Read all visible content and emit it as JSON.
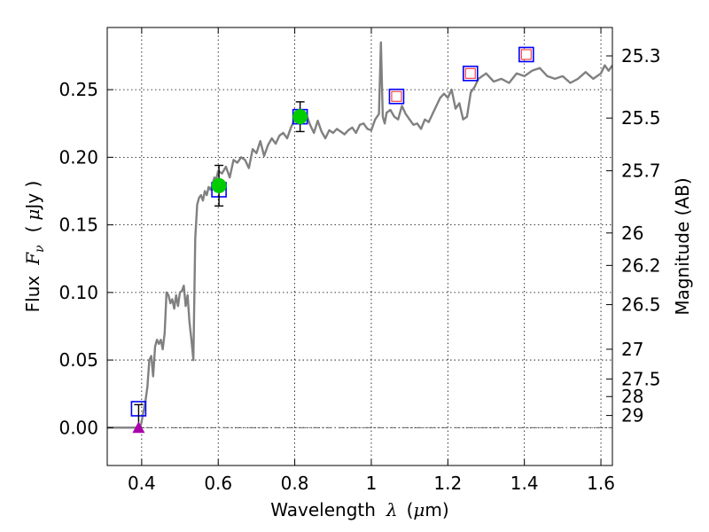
{
  "chart_data": {
    "type": "line",
    "title": "",
    "xlabel": {
      "prefix": "Wavelength",
      "symbol": "λ",
      "unit_open": "(",
      "unit_mu": "μ",
      "unit_rest": "m)"
    },
    "ylabel": {
      "prefix": "Flux",
      "symbol": "F",
      "subscript": "ν",
      "unit_open": "(",
      "unit_mu": "μ",
      "unit_rest": "Jy )"
    },
    "y2label": "Magnitude (AB)",
    "xlim": [
      0.31,
      1.63
    ],
    "ylim": [
      -0.028,
      0.296
    ],
    "xticks": [
      0.4,
      0.6,
      0.8,
      1.0,
      1.2,
      1.4,
      1.6
    ],
    "xtick_labels": [
      "0.4",
      "0.6",
      "0.8",
      "1",
      "1.2",
      "1.4",
      "1.6"
    ],
    "yticks": [
      0.0,
      0.05,
      0.1,
      0.15,
      0.2,
      0.25
    ],
    "ytick_labels": [
      "0.00",
      "0.05",
      "0.10",
      "0.15",
      "0.20",
      "0.25"
    ],
    "mag_ticks": [
      {
        "label": "25.3",
        "flux": 0.275
      },
      {
        "label": "25.5",
        "flux": 0.229
      },
      {
        "label": "25.7",
        "flux": 0.19
      },
      {
        "label": "26",
        "flux": 0.144
      },
      {
        "label": "26.2",
        "flux": 0.12
      },
      {
        "label": "26.5",
        "flux": 0.091
      },
      {
        "label": "27",
        "flux": 0.058
      },
      {
        "label": "27.5",
        "flux": 0.036
      },
      {
        "label": "28",
        "flux": 0.023
      },
      {
        "label": "29",
        "flux": 0.009
      }
    ],
    "grid": true,
    "zero_line": 0.0,
    "colors": {
      "spectrum": "#808080",
      "model_box": "#0000ff",
      "observed": "#00cc00",
      "upper_limit": "#aa00aa",
      "ir_marker": "#ff4444",
      "errorbar": "#000000"
    },
    "series": [
      {
        "name": "model spectrum",
        "kind": "line",
        "x": [
          0.31,
          0.392,
          0.398,
          0.405,
          0.41,
          0.415,
          0.42,
          0.425,
          0.43,
          0.435,
          0.44,
          0.445,
          0.45,
          0.455,
          0.46,
          0.465,
          0.47,
          0.475,
          0.48,
          0.485,
          0.49,
          0.495,
          0.5,
          0.505,
          0.51,
          0.515,
          0.52,
          0.525,
          0.53,
          0.535,
          0.54,
          0.545,
          0.55,
          0.555,
          0.56,
          0.565,
          0.57,
          0.575,
          0.58,
          0.585,
          0.59,
          0.595,
          0.6,
          0.61,
          0.62,
          0.63,
          0.64,
          0.65,
          0.66,
          0.67,
          0.68,
          0.69,
          0.7,
          0.71,
          0.72,
          0.73,
          0.74,
          0.75,
          0.76,
          0.77,
          0.78,
          0.79,
          0.8,
          0.81,
          0.82,
          0.83,
          0.84,
          0.85,
          0.86,
          0.87,
          0.88,
          0.89,
          0.9,
          0.91,
          0.92,
          0.93,
          0.94,
          0.95,
          0.96,
          0.97,
          0.98,
          0.99,
          1.0,
          1.01,
          1.02,
          1.025,
          1.03,
          1.035,
          1.04,
          1.05,
          1.06,
          1.07,
          1.08,
          1.09,
          1.1,
          1.11,
          1.12,
          1.13,
          1.14,
          1.15,
          1.16,
          1.17,
          1.18,
          1.19,
          1.2,
          1.21,
          1.22,
          1.23,
          1.24,
          1.25,
          1.26,
          1.27,
          1.28,
          1.3,
          1.32,
          1.34,
          1.36,
          1.38,
          1.4,
          1.42,
          1.44,
          1.46,
          1.48,
          1.5,
          1.52,
          1.54,
          1.56,
          1.58,
          1.6,
          1.61,
          1.62,
          1.63
        ],
        "y": [
          0.0,
          0.0,
          0.002,
          0.012,
          0.02,
          0.03,
          0.05,
          0.053,
          0.038,
          0.06,
          0.065,
          0.062,
          0.065,
          0.058,
          0.07,
          0.1,
          0.098,
          0.092,
          0.095,
          0.088,
          0.098,
          0.09,
          0.1,
          0.101,
          0.105,
          0.09,
          0.098,
          0.078,
          0.065,
          0.05,
          0.14,
          0.165,
          0.17,
          0.172,
          0.168,
          0.175,
          0.172,
          0.178,
          0.176,
          0.18,
          0.185,
          0.184,
          0.19,
          0.188,
          0.193,
          0.185,
          0.198,
          0.196,
          0.2,
          0.198,
          0.192,
          0.206,
          0.203,
          0.212,
          0.201,
          0.209,
          0.214,
          0.21,
          0.216,
          0.218,
          0.214,
          0.222,
          0.228,
          0.226,
          0.235,
          0.232,
          0.224,
          0.218,
          0.227,
          0.219,
          0.214,
          0.22,
          0.218,
          0.221,
          0.219,
          0.217,
          0.22,
          0.222,
          0.218,
          0.224,
          0.225,
          0.221,
          0.22,
          0.228,
          0.232,
          0.285,
          0.23,
          0.225,
          0.233,
          0.235,
          0.23,
          0.228,
          0.238,
          0.232,
          0.228,
          0.224,
          0.225,
          0.221,
          0.228,
          0.226,
          0.232,
          0.238,
          0.244,
          0.247,
          0.244,
          0.25,
          0.236,
          0.24,
          0.228,
          0.23,
          0.248,
          0.252,
          0.258,
          0.262,
          0.256,
          0.258,
          0.255,
          0.262,
          0.26,
          0.264,
          0.266,
          0.26,
          0.258,
          0.26,
          0.255,
          0.258,
          0.263,
          0.258,
          0.262,
          0.268,
          0.264,
          0.268
        ]
      },
      {
        "name": "model photometry",
        "kind": "open-square",
        "x": [
          0.392,
          0.602,
          0.814,
          1.066,
          1.259,
          1.405
        ],
        "y": [
          0.014,
          0.176,
          0.23,
          0.245,
          0.262,
          0.276
        ]
      },
      {
        "name": "observed photometry",
        "kind": "filled-circle",
        "x": [
          0.602,
          0.814
        ],
        "y": [
          0.179,
          0.23
        ],
        "yerr": [
          0.015,
          0.011
        ]
      },
      {
        "name": "upper limit",
        "kind": "triangle",
        "x": [
          0.392
        ],
        "y": [
          0.0
        ],
        "yerr_upper": [
          0.017
        ]
      },
      {
        "name": "NIR model",
        "kind": "small-square",
        "x": [
          1.066,
          1.259,
          1.405
        ],
        "y": [
          0.245,
          0.262,
          0.276
        ]
      }
    ]
  }
}
